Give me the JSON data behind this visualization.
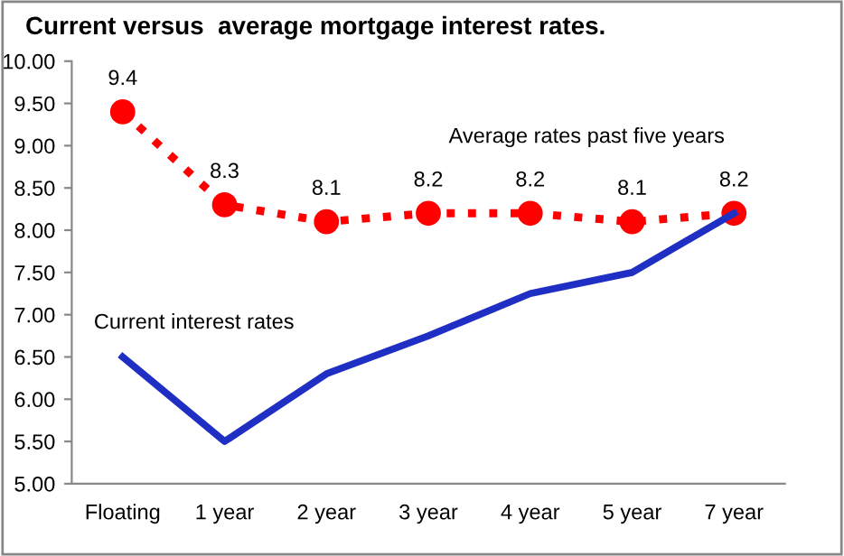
{
  "chart_data": {
    "type": "line",
    "title": "Current versus  average mortgage interest rates.",
    "categories": [
      "Floating",
      "1 year",
      "2 year",
      "3 year",
      "4 year",
      "5 year",
      "7 year"
    ],
    "series": [
      {
        "name": "Current interest rates",
        "color": "#1f2fc4",
        "values": [
          6.5,
          5.5,
          6.3,
          6.75,
          7.25,
          7.5,
          8.2
        ],
        "marker": "none",
        "line_style": "solid"
      },
      {
        "name": "Average rates past five years",
        "color": "#ff0000",
        "values": [
          9.4,
          8.3,
          8.1,
          8.2,
          8.2,
          8.1,
          8.2
        ],
        "marker": "circle",
        "line_style": "dotted",
        "value_labels": [
          "9.4",
          "8.3",
          "8.1",
          "8.2",
          "8.2",
          "8.1",
          "8.2"
        ]
      }
    ],
    "ylim": [
      5,
      10
    ],
    "yticks": [
      {
        "value": 5,
        "label": "5.00"
      },
      {
        "value": 5.5,
        "label": "5.50"
      },
      {
        "value": 6,
        "label": "6.00"
      },
      {
        "value": 6.5,
        "label": "6.50"
      },
      {
        "value": 7,
        "label": "7.00"
      },
      {
        "value": 7.5,
        "label": "7.50"
      },
      {
        "value": 8,
        "label": "8.00"
      },
      {
        "value": 8.5,
        "label": "8.50"
      },
      {
        "value": 9,
        "label": "9.00"
      },
      {
        "value": 9.5,
        "label": "9.50"
      },
      {
        "value": 10,
        "label": "10.00"
      }
    ],
    "grid": false,
    "legend": false
  }
}
